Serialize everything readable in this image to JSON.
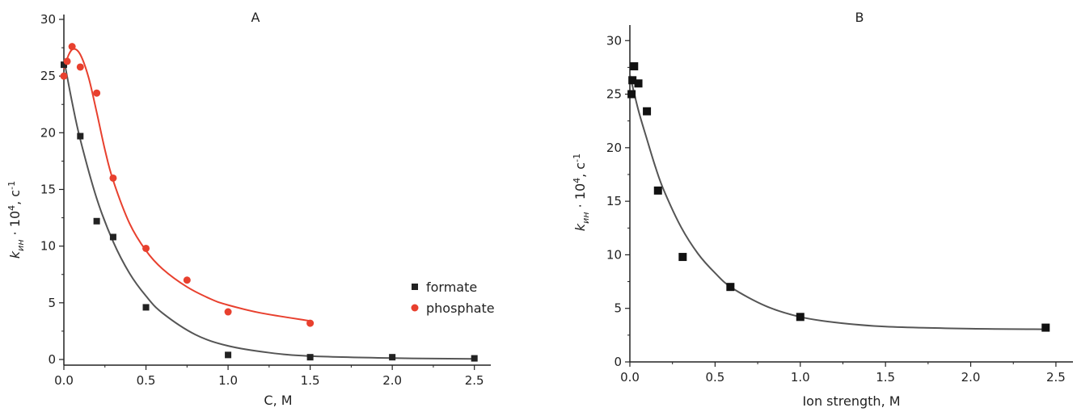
{
  "chart_data": [
    {
      "type": "scatter",
      "title": "A",
      "xlabel": "C, M",
      "ylabel": {
        "main": "k",
        "sub": "ин",
        "rest": " · 10",
        "sup1": "4",
        "rest2": ", c",
        "sup2": "-1"
      },
      "xlim": [
        0,
        2.6
      ],
      "ylim": [
        -0.5,
        30
      ],
      "xticks": [
        0,
        0.5,
        1.0,
        1.5,
        2.0,
        2.5
      ],
      "xtick_labels": [
        "0.0",
        "0.5",
        "1.0",
        "1.5",
        "2.0",
        "2.5"
      ],
      "yticks": [
        0,
        5,
        10,
        15,
        20,
        25,
        30
      ],
      "ytick_labels": [
        "0",
        "5",
        "10",
        "15",
        "20",
        "25",
        "30"
      ],
      "legend_position": "right",
      "series": [
        {
          "name": "formate",
          "marker": "square",
          "color": "#222222",
          "curve_color": "#555555",
          "x": [
            0.0,
            0.1,
            0.2,
            0.3,
            0.5,
            1.0,
            1.5,
            2.0,
            2.5
          ],
          "y": [
            26.0,
            19.7,
            12.2,
            10.8,
            4.6,
            0.4,
            0.2,
            0.2,
            0.1
          ],
          "fit": {
            "x": [
              0.0,
              0.05,
              0.1,
              0.2,
              0.3,
              0.4,
              0.5,
              0.6,
              0.8,
              1.0,
              1.25,
              1.5,
              2.0,
              2.5
            ],
            "y": [
              26.5,
              22.7,
              19.4,
              14.2,
              10.4,
              7.6,
              5.6,
              4.1,
              2.2,
              1.2,
              0.6,
              0.3,
              0.12,
              0.05
            ]
          }
        },
        {
          "name": "phosphate",
          "marker": "circle",
          "color": "#e8402e",
          "curve_color": "#e8402e",
          "x": [
            0.0,
            0.02,
            0.05,
            0.1,
            0.2,
            0.3,
            0.5,
            0.75,
            1.0,
            1.5
          ],
          "y": [
            25.0,
            26.3,
            27.6,
            25.8,
            23.5,
            16.0,
            9.8,
            7.0,
            4.2,
            3.2
          ],
          "fit": {
            "x": [
              0.0,
              0.03,
              0.06,
              0.1,
              0.15,
              0.2,
              0.25,
              0.3,
              0.4,
              0.5,
              0.6,
              0.75,
              0.9,
              1.0,
              1.2,
              1.5
            ],
            "y": [
              25.6,
              26.9,
              27.4,
              26.9,
              24.9,
              21.8,
              18.5,
              15.8,
              12.0,
              9.6,
              8.0,
              6.4,
              5.3,
              4.8,
              4.1,
              3.4
            ]
          }
        }
      ]
    },
    {
      "type": "scatter",
      "title": "B",
      "xlabel": "Ion strength, M",
      "ylabel": {
        "main": "k",
        "sub": "ин",
        "rest": " · 10",
        "sup1": "4",
        "rest2": ", c",
        "sup2": "-1"
      },
      "xlim": [
        0,
        2.6
      ],
      "ylim": [
        0,
        31
      ],
      "xticks": [
        0,
        0.5,
        1.0,
        1.5,
        2.0,
        2.5
      ],
      "xtick_labels": [
        "0.0",
        "0.5",
        "1.0",
        "1.5",
        "2.0",
        "2.5"
      ],
      "yticks": [
        0,
        5,
        10,
        15,
        20,
        25,
        30
      ],
      "ytick_labels": [
        "0",
        "5",
        "10",
        "15",
        "20",
        "25",
        "30"
      ],
      "series": [
        {
          "marker": "square",
          "color": "#111111",
          "curve_color": "#555555",
          "x": [
            0.01,
            0.015,
            0.025,
            0.05,
            0.1,
            0.165,
            0.31,
            0.59,
            1.0,
            2.44
          ],
          "y": [
            25.0,
            26.3,
            27.6,
            26.0,
            23.4,
            16.0,
            9.8,
            7.0,
            4.2,
            3.2
          ],
          "fit": {
            "x": [
              0.0,
              0.05,
              0.1,
              0.15,
              0.2,
              0.3,
              0.4,
              0.5,
              0.6,
              0.8,
              1.0,
              1.2,
              1.5,
              2.0,
              2.45
            ],
            "y": [
              26.8,
              23.5,
              20.8,
              18.2,
              16.0,
              12.6,
              10.1,
              8.3,
              6.9,
              5.2,
              4.2,
              3.7,
              3.3,
              3.1,
              3.05
            ]
          }
        }
      ]
    }
  ]
}
